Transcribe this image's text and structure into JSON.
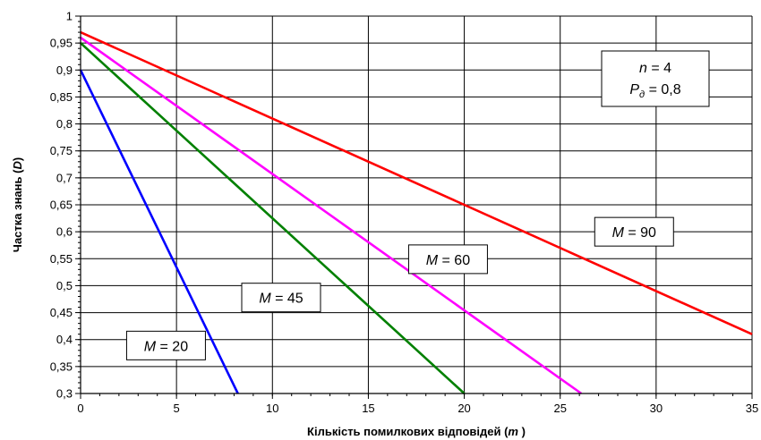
{
  "chart_data": {
    "type": "line",
    "xlabel_main": "Кількість помилкових відповідей (",
    "xlabel_var": "m",
    "xlabel_end": " )",
    "ylabel_main": "Частка знань (",
    "ylabel_var": "D",
    "ylabel_end": ")",
    "xlim": [
      0,
      35
    ],
    "ylim": [
      0.3,
      1
    ],
    "xticks": [
      0,
      5,
      10,
      15,
      20,
      25,
      30,
      35
    ],
    "xtick_labels": [
      "0",
      "5",
      "10",
      "15",
      "20",
      "25",
      "30",
      "35"
    ],
    "yticks": [
      0.3,
      0.35,
      0.4,
      0.45,
      0.5,
      0.55,
      0.6,
      0.65,
      0.7,
      0.75,
      0.8,
      0.85,
      0.9,
      0.95,
      1
    ],
    "ytick_labels": [
      "0,3",
      "0,35",
      "0,4",
      "0,45",
      "0,5",
      "0,55",
      "0,6",
      "0,65",
      "0,7",
      "0,75",
      "0,8",
      "0,85",
      "0,9",
      "0,95",
      "1"
    ],
    "grid": true,
    "series": [
      {
        "name": "M = 20",
        "color": "#0000ff",
        "x": [
          0,
          8.2
        ],
        "y": [
          0.9,
          0.3
        ]
      },
      {
        "name": "M = 45",
        "color": "#008000",
        "x": [
          0,
          20
        ],
        "y": [
          0.95,
          0.3
        ]
      },
      {
        "name": "M = 60",
        "color": "#ff00ff",
        "x": [
          0,
          26.1
        ],
        "y": [
          0.96,
          0.3
        ]
      },
      {
        "name": "M = 90",
        "color": "#ff0000",
        "x": [
          0,
          35
        ],
        "y": [
          0.97,
          0.41
        ]
      }
    ],
    "series_labels": [
      {
        "var": "M",
        "text": " = 20",
        "anchor_x": 2.4,
        "anchor_y": 0.389
      },
      {
        "var": "M",
        "text": " = 45",
        "anchor_x": 8.4,
        "anchor_y": 0.478
      },
      {
        "var": "M",
        "text": " = 60",
        "anchor_x": 17.1,
        "anchor_y": 0.549
      },
      {
        "var": "M",
        "text": " = 90",
        "anchor_x": 26.8,
        "anchor_y": 0.6
      }
    ],
    "annotation": {
      "line1_var": "n",
      "line1_text": " = 4",
      "line2_var": "P",
      "line2_sub": "д",
      "line2_text": " = 0,8"
    }
  }
}
